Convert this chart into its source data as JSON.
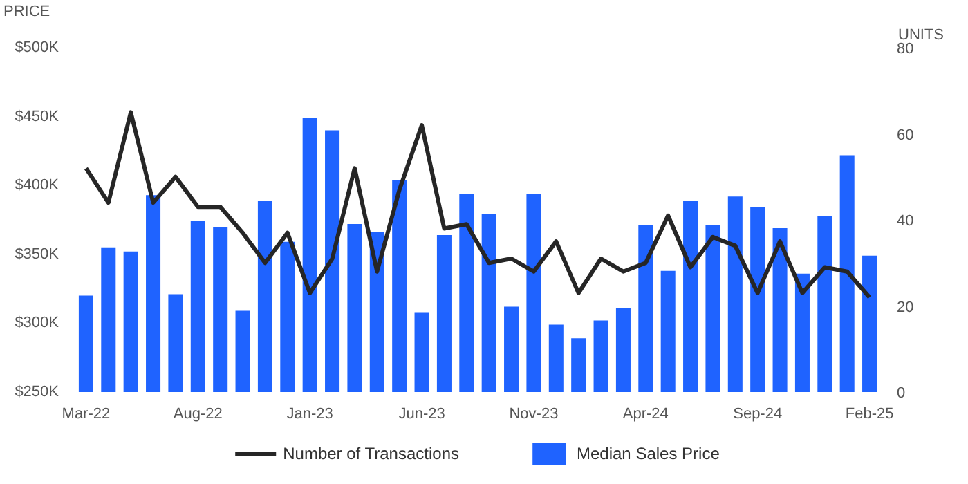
{
  "chart_data": {
    "type": "bar",
    "ylabel": "PRICE",
    "y2label": "UNITS",
    "categories": [
      "Mar-22",
      null,
      null,
      null,
      null,
      "Aug-22",
      null,
      null,
      null,
      null,
      "Jan-23",
      null,
      null,
      null,
      null,
      "Jun-23",
      null,
      null,
      null,
      null,
      "Nov-23",
      null,
      null,
      null,
      null,
      "Apr-24",
      null,
      null,
      null,
      null,
      "Sep-24",
      null,
      null,
      null,
      null,
      "Feb-25"
    ],
    "series": [
      {
        "name": "Number of Transactions",
        "type": "line",
        "axis": "y2",
        "color": "#262626",
        "values": [
          52,
          44,
          65,
          44,
          50,
          43,
          43,
          37,
          30,
          37,
          23,
          31,
          52,
          28,
          47,
          62,
          38,
          39,
          30,
          31,
          28,
          35,
          23,
          31,
          28,
          30,
          41,
          29,
          36,
          34,
          23,
          35,
          23,
          29,
          28,
          22
        ]
      },
      {
        "name": "Median Sales Price",
        "color": "#1f63ff",
        "values": [
          320000,
          355000,
          352000,
          393000,
          321000,
          374000,
          370000,
          309000,
          389000,
          359000,
          449000,
          440000,
          372000,
          366000,
          404000,
          308000,
          364000,
          394000,
          379000,
          312000,
          394000,
          299000,
          289000,
          302000,
          311000,
          371000,
          338000,
          389000,
          371000,
          392000,
          384000,
          369000,
          336000,
          378000,
          422000,
          349000
        ]
      }
    ],
    "ylim": [
      250000,
      500000
    ],
    "yticks": [
      {
        "value": 250000,
        "label": "$250K"
      },
      {
        "value": 300000,
        "label": "$300K"
      },
      {
        "value": 350000,
        "label": "$350K"
      },
      {
        "value": 400000,
        "label": "$400K"
      },
      {
        "value": 450000,
        "label": "$450K"
      },
      {
        "value": 500000,
        "label": "$500K"
      }
    ],
    "y2lim": [
      0,
      80
    ],
    "y2ticks": [
      0,
      20,
      40,
      60,
      80
    ],
    "grid": false,
    "legend": "bottom"
  }
}
